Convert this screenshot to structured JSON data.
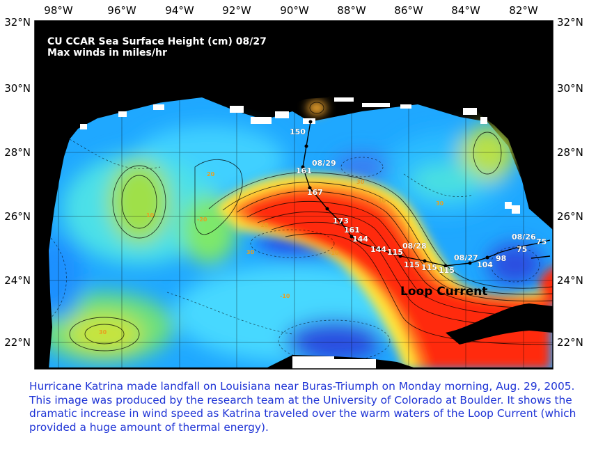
{
  "map": {
    "title_line1": "CU CCAR Sea Surface Height (cm) 08/27",
    "title_line2": "Max winds in miles/hr",
    "lon_labels": [
      "98°W",
      "96°W",
      "94°W",
      "92°W",
      "90°W",
      "88°W",
      "86°W",
      "84°W",
      "82°W"
    ],
    "lat_labels": [
      "32°N",
      "30°N",
      "28°N",
      "26°N",
      "24°N",
      "22°N"
    ],
    "region_label": "Loop Current",
    "track_labels": [
      "150",
      "08/29",
      "161",
      "167",
      "173",
      "161",
      "144",
      "144",
      "115",
      "08/28",
      "115",
      "115",
      "115",
      "08/27",
      "104",
      "98",
      "08/26",
      "75",
      "75"
    ],
    "contour_labels": [
      "20",
      "10",
      "30",
      "30",
      "-20",
      "30",
      "-10",
      "-10",
      "10",
      "30",
      "10"
    ],
    "colors": {
      "land": "#000000",
      "frame": "#ffffff",
      "track": "#000000",
      "label_text": "#ffffff",
      "loop_current_text": "#000000",
      "contour_label": "#e8a020"
    }
  },
  "caption": {
    "text": "Hurricane Katrina made landfall on Louisiana near Buras-Triumph on Monday morning, Aug. 29, 2005. This image was produced by the research team at the University of Colorado at Boulder.  It shows the dramatic increase in wind speed as Katrina traveled over the warm waters of the Loop Current (which provided a huge amount of thermal energy).",
    "color": "#1f34d6"
  }
}
